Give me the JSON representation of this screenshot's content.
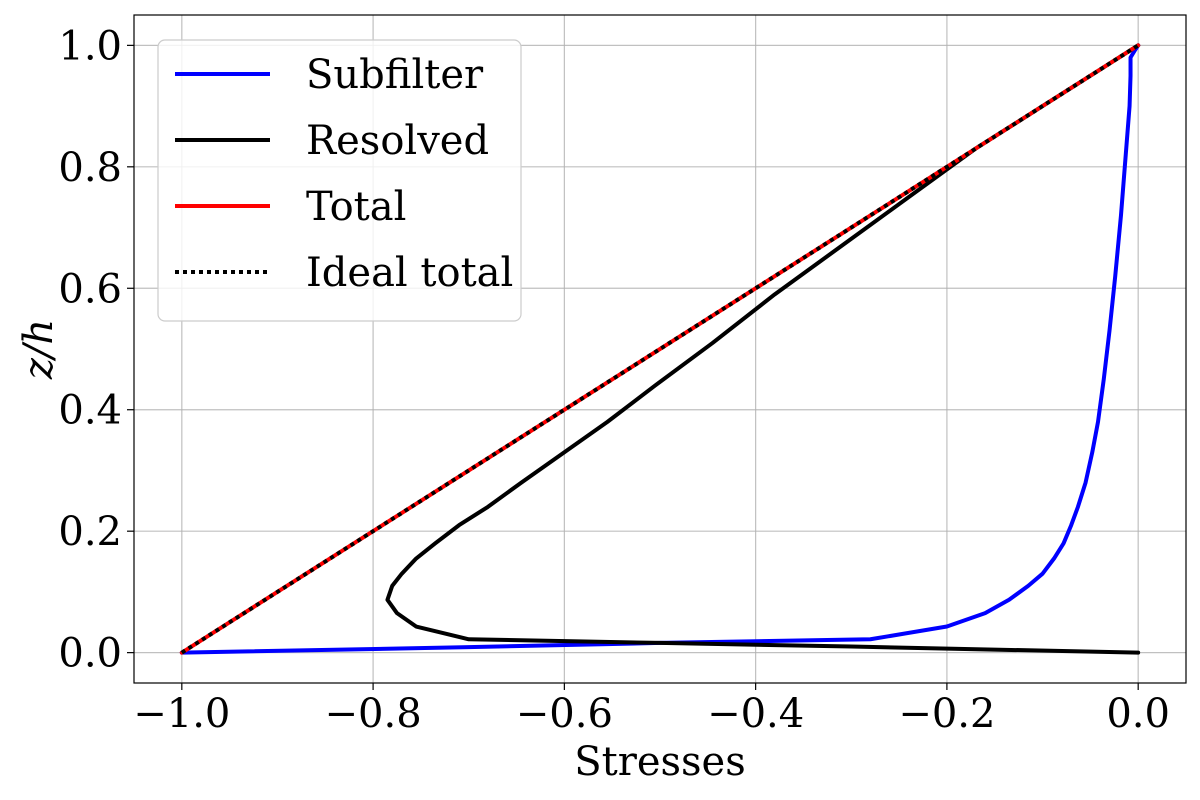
{
  "chart_data": {
    "type": "line",
    "title": "",
    "xlabel": "Stresses",
    "ylabel": "z/h",
    "xlim": [
      -1.05,
      0.05
    ],
    "ylim": [
      -0.05,
      1.05
    ],
    "xticks": [
      -1.0,
      -0.8,
      -0.6,
      -0.4,
      -0.2,
      0.0
    ],
    "yticks": [
      0.0,
      0.2,
      0.4,
      0.6,
      0.8,
      1.0
    ],
    "xtick_labels": [
      "−1.0",
      "−0.8",
      "−0.6",
      "−0.4",
      "−0.2",
      "0.0"
    ],
    "ytick_labels": [
      "0.0",
      "0.2",
      "0.4",
      "0.6",
      "0.8",
      "1.0"
    ],
    "grid": true,
    "legend_position": "top-left",
    "series": [
      {
        "name": "Subfilter",
        "color": "#0000ff",
        "style": "solid",
        "points": [
          [
            -1.0,
            0.0
          ],
          [
            -0.7,
            0.009
          ],
          [
            -0.5,
            0.016
          ],
          [
            -0.28,
            0.022
          ],
          [
            -0.2,
            0.043
          ],
          [
            -0.16,
            0.065
          ],
          [
            -0.135,
            0.087
          ],
          [
            -0.115,
            0.11
          ],
          [
            -0.1,
            0.13
          ],
          [
            -0.088,
            0.155
          ],
          [
            -0.078,
            0.18
          ],
          [
            -0.07,
            0.21
          ],
          [
            -0.063,
            0.24
          ],
          [
            -0.055,
            0.28
          ],
          [
            -0.048,
            0.33
          ],
          [
            -0.042,
            0.38
          ],
          [
            -0.036,
            0.45
          ],
          [
            -0.03,
            0.53
          ],
          [
            -0.024,
            0.62
          ],
          [
            -0.018,
            0.72
          ],
          [
            -0.013,
            0.82
          ],
          [
            -0.009,
            0.9
          ],
          [
            -0.008,
            0.95
          ],
          [
            -0.008,
            0.98
          ],
          [
            -0.003,
            0.993
          ],
          [
            0.0,
            1.0
          ]
        ]
      },
      {
        "name": "Resolved",
        "color": "#000000",
        "style": "solid",
        "points": [
          [
            0.0,
            0.0
          ],
          [
            -0.3,
            0.01
          ],
          [
            -0.5,
            0.016
          ],
          [
            -0.7,
            0.022
          ],
          [
            -0.755,
            0.043
          ],
          [
            -0.775,
            0.065
          ],
          [
            -0.785,
            0.087
          ],
          [
            -0.78,
            0.11
          ],
          [
            -0.77,
            0.13
          ],
          [
            -0.755,
            0.155
          ],
          [
            -0.735,
            0.18
          ],
          [
            -0.71,
            0.21
          ],
          [
            -0.68,
            0.24
          ],
          [
            -0.645,
            0.28
          ],
          [
            -0.6,
            0.33
          ],
          [
            -0.555,
            0.38
          ],
          [
            -0.505,
            0.44
          ],
          [
            -0.445,
            0.51
          ],
          [
            -0.38,
            0.59
          ],
          [
            -0.31,
            0.67
          ],
          [
            -0.24,
            0.75
          ],
          [
            -0.17,
            0.83
          ],
          [
            -0.1,
            0.9
          ],
          [
            -0.04,
            0.96
          ],
          [
            0.0,
            1.0
          ]
        ]
      },
      {
        "name": "Total",
        "color": "#ff0000",
        "style": "solid",
        "points": [
          [
            -1.0,
            0.0
          ],
          [
            0.0,
            1.0
          ]
        ]
      },
      {
        "name": "Ideal total",
        "color": "#000000",
        "style": "dotted",
        "points": [
          [
            -1.0,
            0.0
          ],
          [
            0.0,
            1.0
          ]
        ]
      }
    ]
  }
}
